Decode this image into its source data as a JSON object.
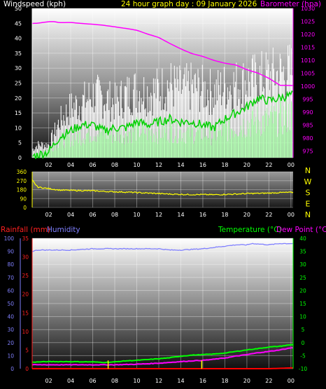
{
  "header": {
    "wind_title": "Windspeed (kph)",
    "graph_title": "24 hour graph day : 09 January 2026",
    "baro_title": "Barometer (hpa)"
  },
  "colors": {
    "background": "#000000",
    "wind_gust": "#ffffff",
    "wind_avg": "#b0ffb0",
    "wind_mean": "#00d000",
    "barometer": "#ff00ff",
    "direction": "#ffff00",
    "rain_axis": "#ff2020",
    "humidity": "#8080ff",
    "temperature": "#00ff00",
    "dew_point": "#ff00ff",
    "rain_bar": "#ffff00"
  },
  "chart_data": [
    {
      "type": "line",
      "title": "24 hour graph day : 09 January 2026",
      "x_ticks": [
        "02",
        "04",
        "06",
        "08",
        "10",
        "12",
        "14",
        "16",
        "18",
        "20",
        "22",
        "00"
      ],
      "left_axis": {
        "label": "Windspeed (kph)",
        "ylim": [
          0,
          50
        ],
        "ticks": [
          0,
          5,
          10,
          15,
          20,
          25,
          30,
          35,
          40,
          45,
          50
        ]
      },
      "right_axis": {
        "label": "Barometer (hpa)",
        "ylim": [
          972.5,
          1030
        ],
        "ticks": [
          975,
          980,
          985,
          990,
          995,
          1000,
          1005,
          1010,
          1015,
          1020,
          1025,
          1030
        ]
      },
      "series": [
        {
          "name": "Barometer (hpa)",
          "axis": "right",
          "x": [
            0.5,
            1,
            2,
            2.5,
            3,
            4,
            5,
            6,
            7,
            8,
            9,
            10,
            11,
            12,
            13,
            14,
            15,
            16,
            17,
            18,
            19,
            20,
            21,
            22,
            23,
            24
          ],
          "values": [
            1024.2,
            1024.3,
            1024.9,
            1024.9,
            1024.5,
            1024.6,
            1024.2,
            1023.9,
            1023.5,
            1022.9,
            1022.3,
            1021.6,
            1020.1,
            1018.8,
            1016.5,
            1014.4,
            1012.6,
            1011.5,
            1010.0,
            1008.9,
            1008.2,
            1006.4,
            1005.1,
            1003.1,
            1000.4,
            1000.3
          ]
        },
        {
          "axis": "left",
          "style": "gust",
          "x": [
            0.5,
            1,
            2,
            3,
            4,
            5,
            6,
            7,
            8,
            9,
            10,
            11,
            12,
            13,
            14,
            15,
            16,
            17,
            18,
            19,
            20,
            21,
            22,
            23,
            24
          ],
          "values": [
            3,
            5,
            5,
            14,
            19,
            21,
            24,
            23,
            21,
            24,
            26,
            25,
            26,
            28,
            26,
            27,
            26,
            25,
            27,
            28,
            29,
            30,
            31,
            32,
            33
          ]
        },
        {
          "axis": "left",
          "style": "average",
          "x": [
            0.5,
            1,
            2,
            3,
            4,
            5,
            6,
            7,
            8,
            9,
            10,
            11,
            12,
            13,
            14,
            15,
            16,
            17,
            18,
            19,
            20,
            21,
            22,
            23,
            24
          ],
          "values": [
            0.5,
            1,
            3,
            6,
            7,
            8,
            9,
            9,
            8,
            9,
            10,
            9,
            9,
            10,
            9,
            9,
            9,
            8,
            10,
            11,
            12,
            13,
            13,
            14,
            15
          ]
        },
        {
          "axis": "left",
          "style": "mean",
          "x": [
            0.5,
            1,
            2,
            3,
            4,
            5,
            6,
            7,
            8,
            9,
            10,
            11,
            12,
            13,
            14,
            15,
            16,
            17,
            18,
            19,
            20,
            21,
            22,
            23,
            24
          ],
          "values": [
            0.5,
            1,
            2,
            7,
            9,
            11,
            11,
            9,
            10,
            10,
            12,
            11,
            12,
            13,
            12,
            12,
            11,
            10,
            13,
            15,
            17,
            20,
            19,
            20,
            21
          ]
        }
      ]
    },
    {
      "type": "line",
      "x_ticks": [
        "02",
        "04",
        "06",
        "08",
        "10",
        "12",
        "14",
        "16",
        "18",
        "20",
        "22",
        "00"
      ],
      "left_axis": {
        "ylim": [
          0,
          360
        ],
        "ticks": [
          0,
          90,
          180,
          270,
          360
        ]
      },
      "right_labels": [
        "N",
        "W",
        "S",
        "E",
        "N"
      ],
      "series": [
        {
          "axis": "left",
          "x": [
            0.3,
            0.5,
            1,
            2,
            3,
            4,
            5,
            6,
            7,
            8,
            9,
            10,
            11,
            12,
            13,
            14,
            15,
            16,
            17,
            18,
            19,
            20,
            21,
            22,
            23,
            24
          ],
          "values": [
            280,
            275,
            205,
            190,
            175,
            172,
            170,
            168,
            162,
            158,
            155,
            150,
            145,
            140,
            135,
            132,
            130,
            130,
            128,
            132,
            135,
            140,
            142,
            145,
            150,
            152
          ]
        }
      ]
    },
    {
      "type": "line",
      "x_ticks": [
        "02",
        "04",
        "06",
        "08",
        "10",
        "12",
        "14",
        "16",
        "18",
        "20",
        "22",
        "00"
      ],
      "axes": {
        "humidity": {
          "label": "Humidity",
          "ylim": [
            0,
            100
          ],
          "ticks": [
            0,
            10,
            20,
            30,
            40,
            50,
            60,
            70,
            80,
            90,
            100
          ]
        },
        "rainfall": {
          "label": "Rainfall (mm)",
          "ylim": [
            0,
            35
          ],
          "ticks": [
            0,
            5,
            10,
            15,
            20,
            25,
            30,
            35
          ]
        },
        "temperature": {
          "label": "Temperature (°C)",
          "ylim": [
            -10,
            40
          ],
          "ticks": [
            -10,
            -5,
            0,
            5,
            10,
            15,
            20,
            25,
            30,
            35,
            40
          ]
        },
        "dew_point": {
          "label": "Dew Point (°C)"
        }
      },
      "series": [
        {
          "name": "Humidity",
          "axis": "humidity",
          "x": [
            0.5,
            1,
            2,
            3,
            4,
            6,
            8,
            10,
            12,
            13,
            14,
            16,
            17,
            18,
            19,
            20,
            20.5,
            22,
            23,
            24
          ],
          "values": [
            90,
            91,
            91,
            91,
            91,
            92,
            92,
            92,
            92,
            91,
            91,
            92,
            93,
            94,
            95,
            95,
            96,
            95,
            96,
            96
          ]
        },
        {
          "name": "Temperature (°C)",
          "axis": "temperature",
          "x": [
            0.5,
            2,
            4,
            6,
            7,
            8,
            9,
            10,
            12,
            13,
            14,
            15,
            16,
            17,
            18,
            19,
            20,
            21,
            22,
            23,
            24
          ],
          "values": [
            -7.5,
            -7.3,
            -7.3,
            -7.4,
            -7.6,
            -7.4,
            -7.0,
            -6.8,
            -6.2,
            -5.8,
            -5.2,
            -4.8,
            -4.6,
            -4.4,
            -4.0,
            -3.4,
            -2.8,
            -2.3,
            -1.7,
            -1.4,
            -0.8
          ]
        },
        {
          "name": "Dew Point (°C)",
          "axis": "temperature",
          "x": [
            0.5,
            2,
            4,
            6,
            8,
            10,
            12,
            13,
            14,
            15,
            16,
            17,
            18,
            19,
            20,
            21,
            22,
            23,
            24
          ],
          "values": [
            -8.5,
            -8.5,
            -8.5,
            -8.5,
            -8.5,
            -8.3,
            -7.9,
            -7.6,
            -7.3,
            -7.0,
            -6.8,
            -6.4,
            -5.9,
            -5.2,
            -4.6,
            -3.9,
            -3.4,
            -2.8,
            -2.0
          ]
        },
        {
          "name": "Rainfall (mm)",
          "axis": "rainfall",
          "x": [
            0.5,
            4,
            8,
            10,
            14,
            16,
            18,
            20,
            22,
            24
          ],
          "values": [
            0,
            0,
            0,
            0,
            0,
            0,
            0,
            0,
            0,
            0.2
          ]
        },
        {
          "axis": "rainfall",
          "style": "rain-bars",
          "x": [
            7.4,
            15.9
          ],
          "values": [
            2.2,
            2.2
          ]
        }
      ]
    }
  ]
}
